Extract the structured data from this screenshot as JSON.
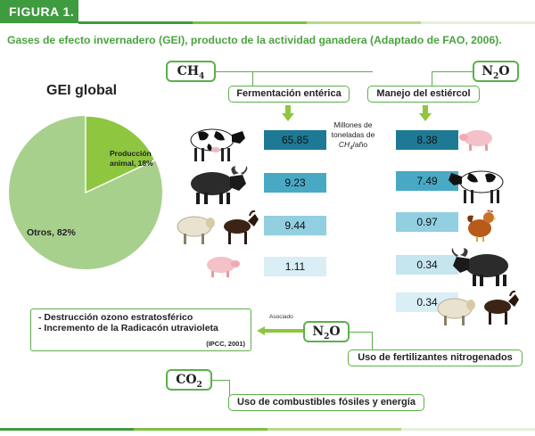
{
  "header": {
    "figure_label": "FIGURA 1.",
    "subtitle": "Gases de efecto invernadero (GEI), producto de la actividad ganadera (Adaptado de FAO, 2006)."
  },
  "gei": {
    "title": "GEI global",
    "slices": [
      {
        "label_line1": "Producción",
        "label_line2": "animal, 18%",
        "value": 18,
        "color": "#8ec63f"
      },
      {
        "label_line1": "Otros, 82%",
        "value": 82,
        "color": "#a8d08d"
      }
    ]
  },
  "ch4": {
    "gas_main": "CH",
    "gas_sub": "4",
    "enteric_label": "Fermentación entérica",
    "manure_label": "Manejo del estiércol",
    "units_line1": "Millones de",
    "units_line2": "toneladas de",
    "units_formula_main": "CH",
    "units_formula_sub": "4",
    "units_formula_tail": "/año"
  },
  "n2o_top": {
    "gas_main": "N",
    "gas_sub": "2",
    "gas_tail": "O"
  },
  "enteric_values": [
    {
      "value": "65.85",
      "color": "#1e7a94",
      "icon": "cow-icon"
    },
    {
      "value": "9.23",
      "color": "#48a9c5",
      "icon": "buffalo-icon"
    },
    {
      "value": "9.44",
      "color": "#92cfe0",
      "icon": "sheep-goat-icon"
    },
    {
      "value": "1.11",
      "color": "#d9eef5",
      "icon": "pig-icon"
    }
  ],
  "manure_values": [
    {
      "value": "8.38",
      "color": "#1e7a94",
      "icon": "pig-icon"
    },
    {
      "value": "7.49",
      "color": "#48a9c5",
      "icon": "cow-icon"
    },
    {
      "value": "0.97",
      "color": "#92cfe0",
      "icon": "chicken-icon"
    },
    {
      "value": "0.34",
      "color": "#c5e5ef",
      "icon": "buffalo-icon"
    },
    {
      "value": "0.34",
      "color": "#d9eef5",
      "icon": "sheep-goat-icon"
    }
  ],
  "n2o_bottom": {
    "gas_main": "N",
    "gas_sub": "2",
    "gas_tail": "O",
    "source_label": "Uso de fertilizantes nitrogenados",
    "assoc_label": "Asociado",
    "effect_1": "- Destrucción ozono estratosférico",
    "effect_2": "-  Incremento de la Radicacón utravioleta",
    "citation": "(IPCC, 2001)"
  },
  "co2": {
    "gas_main": "CO",
    "gas_sub": "2",
    "source_label": "Uso de combustibles fósiles y energía"
  },
  "colors": {
    "brand_green": "#3f9b3f",
    "frame_green": "#5bb04a",
    "arrow_green": "#8ec63f",
    "stripe": [
      "#3f9b3f",
      "#7cc043",
      "#b5d98a",
      "#e6f0d8"
    ]
  }
}
